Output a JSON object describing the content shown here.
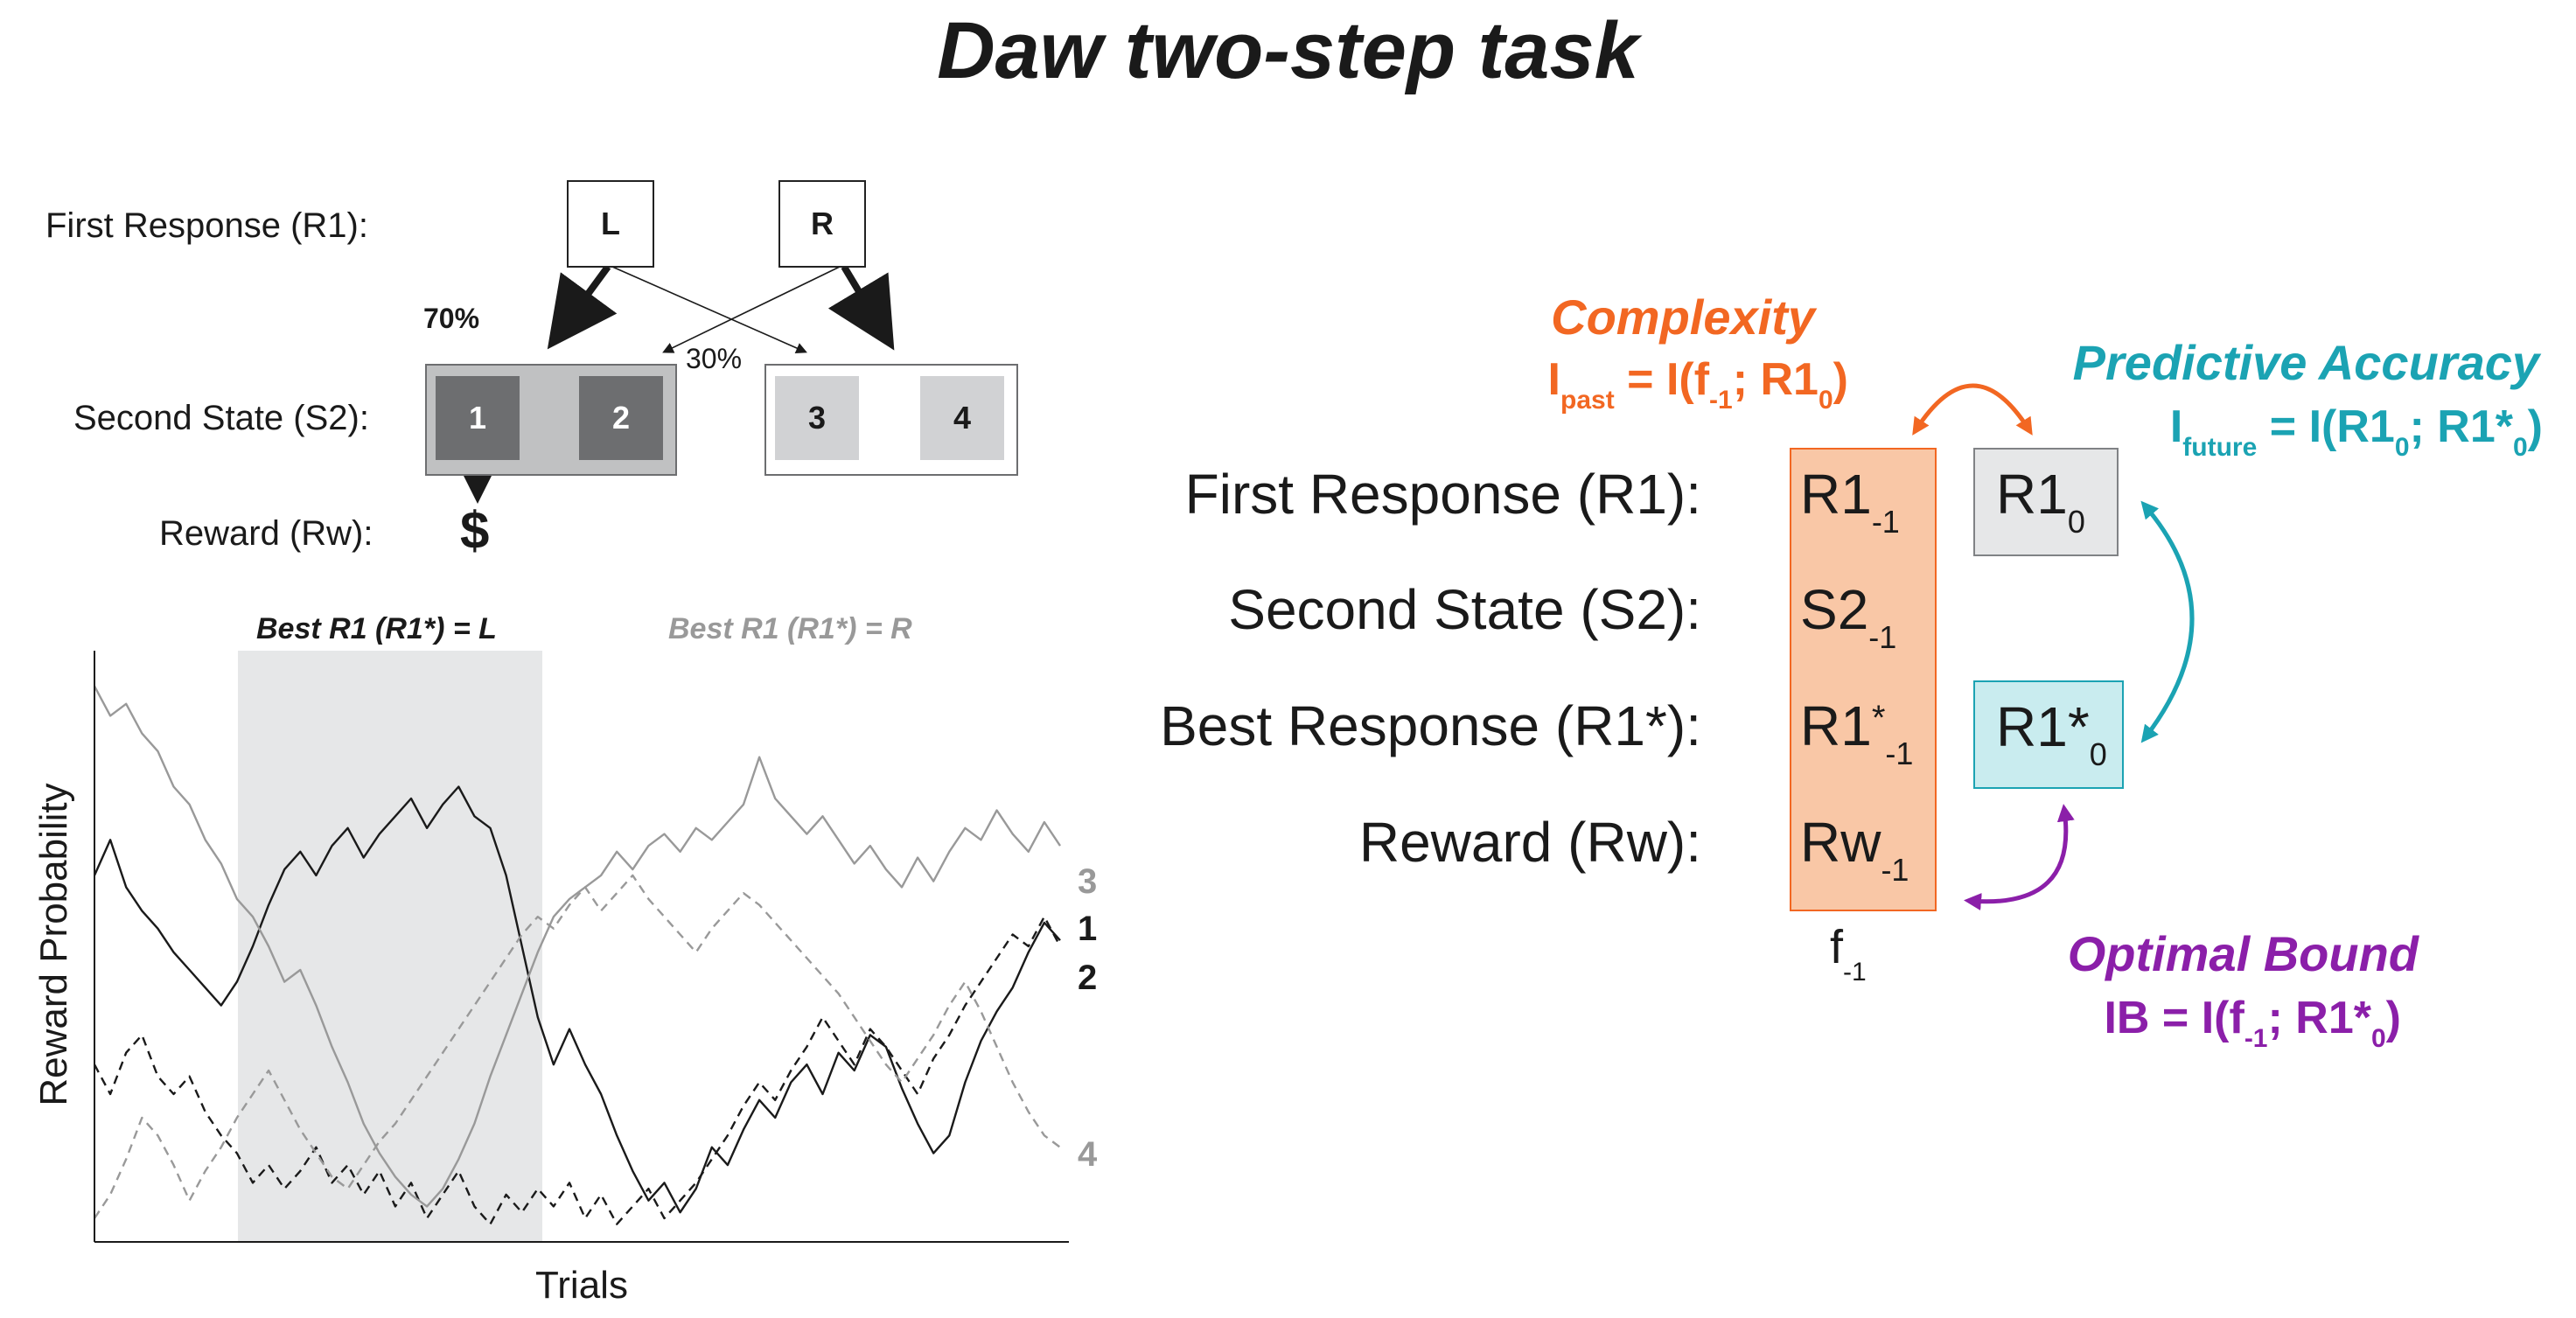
{
  "title": "Daw two-step task",
  "task_diagram": {
    "row_labels": {
      "first_response": "First Response (R1):",
      "second_state": "Second State (S2):",
      "reward": "Reward (Rw):"
    },
    "choice_left": "L",
    "choice_right": "R",
    "common_transition": "70%",
    "rare_transition": "30%",
    "states": [
      "1",
      "2",
      "3",
      "4"
    ],
    "reward_symbol": "$"
  },
  "plot": {
    "epoch_left": "Best R1 (R1*) = L",
    "epoch_right": "Best R1 (R1*) = R",
    "ylabel": "Reward Probability",
    "xlabel": "Trials",
    "end_labels": [
      "3",
      "1",
      "2",
      "4"
    ],
    "colors": {
      "state1": "#1a1a1a",
      "state2": "#1a1a1a",
      "state3": "#999999",
      "state4": "#999999",
      "shade": "#e6e7e8"
    }
  },
  "chart_data": {
    "type": "line",
    "xlabel": "Trials",
    "ylabel": "Reward Probability",
    "shaded_region": "Best R1 (R1*) = L",
    "series": [
      {
        "name": "1",
        "style": "solid",
        "color": "#1a1a1a",
        "values": [
          0.62,
          0.68,
          0.6,
          0.56,
          0.53,
          0.49,
          0.46,
          0.43,
          0.4,
          0.44,
          0.5,
          0.57,
          0.63,
          0.66,
          0.62,
          0.67,
          0.7,
          0.65,
          0.69,
          0.72,
          0.75,
          0.7,
          0.74,
          0.77,
          0.72,
          0.7,
          0.62,
          0.5,
          0.38,
          0.3,
          0.36,
          0.3,
          0.25,
          0.18,
          0.12,
          0.07,
          0.1,
          0.05,
          0.09,
          0.16,
          0.13,
          0.19,
          0.24,
          0.21,
          0.27,
          0.3,
          0.25,
          0.32,
          0.29,
          0.35,
          0.33,
          0.26,
          0.2,
          0.15,
          0.18,
          0.27,
          0.34,
          0.39,
          0.43,
          0.49,
          0.54,
          0.51
        ]
      },
      {
        "name": "2",
        "style": "dashed",
        "color": "#1a1a1a",
        "values": [
          0.3,
          0.25,
          0.32,
          0.35,
          0.28,
          0.25,
          0.28,
          0.22,
          0.18,
          0.15,
          0.1,
          0.13,
          0.09,
          0.12,
          0.16,
          0.1,
          0.13,
          0.08,
          0.12,
          0.06,
          0.1,
          0.04,
          0.08,
          0.12,
          0.06,
          0.03,
          0.08,
          0.05,
          0.09,
          0.06,
          0.1,
          0.04,
          0.08,
          0.03,
          0.06,
          0.09,
          0.04,
          0.07,
          0.1,
          0.14,
          0.18,
          0.23,
          0.27,
          0.24,
          0.29,
          0.33,
          0.38,
          0.34,
          0.3,
          0.36,
          0.33,
          0.29,
          0.25,
          0.31,
          0.35,
          0.4,
          0.44,
          0.48,
          0.52,
          0.5,
          0.55,
          0.5
        ]
      },
      {
        "name": "3",
        "style": "solid",
        "color": "#999999",
        "values": [
          0.94,
          0.89,
          0.91,
          0.86,
          0.83,
          0.77,
          0.74,
          0.68,
          0.64,
          0.58,
          0.55,
          0.5,
          0.44,
          0.46,
          0.4,
          0.33,
          0.27,
          0.2,
          0.15,
          0.11,
          0.08,
          0.06,
          0.09,
          0.14,
          0.2,
          0.28,
          0.35,
          0.42,
          0.49,
          0.55,
          0.58,
          0.6,
          0.62,
          0.66,
          0.63,
          0.67,
          0.69,
          0.66,
          0.7,
          0.68,
          0.71,
          0.74,
          0.82,
          0.75,
          0.72,
          0.69,
          0.72,
          0.68,
          0.64,
          0.67,
          0.63,
          0.6,
          0.65,
          0.61,
          0.66,
          0.7,
          0.68,
          0.73,
          0.69,
          0.66,
          0.71,
          0.67
        ]
      },
      {
        "name": "4",
        "style": "dashed",
        "color": "#999999",
        "values": [
          0.04,
          0.08,
          0.14,
          0.21,
          0.18,
          0.13,
          0.07,
          0.12,
          0.16,
          0.21,
          0.25,
          0.29,
          0.24,
          0.19,
          0.15,
          0.11,
          0.09,
          0.13,
          0.17,
          0.2,
          0.24,
          0.28,
          0.32,
          0.36,
          0.4,
          0.44,
          0.48,
          0.52,
          0.55,
          0.53,
          0.57,
          0.6,
          0.56,
          0.59,
          0.62,
          0.58,
          0.55,
          0.52,
          0.49,
          0.53,
          0.56,
          0.59,
          0.57,
          0.54,
          0.51,
          0.48,
          0.45,
          0.42,
          0.38,
          0.34,
          0.3,
          0.27,
          0.31,
          0.35,
          0.4,
          0.44,
          0.39,
          0.33,
          0.27,
          0.22,
          0.18,
          0.16
        ]
      }
    ]
  },
  "info_diagram": {
    "row_labels": [
      "First Response (R1):",
      "Second State (S2):",
      "Best Response (R1*):",
      "Reward (Rw):"
    ],
    "past_cells": [
      {
        "base": "R1",
        "sub": "-1",
        "sup": ""
      },
      {
        "base": "S2",
        "sub": "-1",
        "sup": ""
      },
      {
        "base": "R1",
        "sub": "-1",
        "sup": "*"
      },
      {
        "base": "Rw",
        "sub": "-1",
        "sup": ""
      }
    ],
    "past_label": {
      "base": "f",
      "sub": "-1"
    },
    "current_r1": {
      "base": "R1",
      "sub": "0"
    },
    "current_best": {
      "base": "R1*",
      "sub": "0"
    },
    "complexity": {
      "title": "Complexity",
      "lhs": "I",
      "lhs_sub": "past",
      "rhs_parts": [
        "= I(f",
        "-1",
        "; R1",
        "0",
        ")"
      ]
    },
    "predictive_accuracy": {
      "title": "Predictive Accuracy",
      "lhs": "I",
      "lhs_sub": "future",
      "rhs_parts": [
        "= I(R1",
        "0",
        "; R1*",
        "0",
        ")"
      ]
    },
    "optimal_bound": {
      "title": "Optimal Bound",
      "rhs_parts": [
        "IB = I(f",
        "-1",
        "; R1*",
        "0",
        ")"
      ]
    },
    "colors": {
      "complexity": "#f26722",
      "predictive": "#1ba3b3",
      "optimal": "#8b1fa9",
      "past_fill": "#f9c7a6",
      "r1_fill": "#e6e7e8",
      "best_fill": "#c9ecef"
    }
  }
}
